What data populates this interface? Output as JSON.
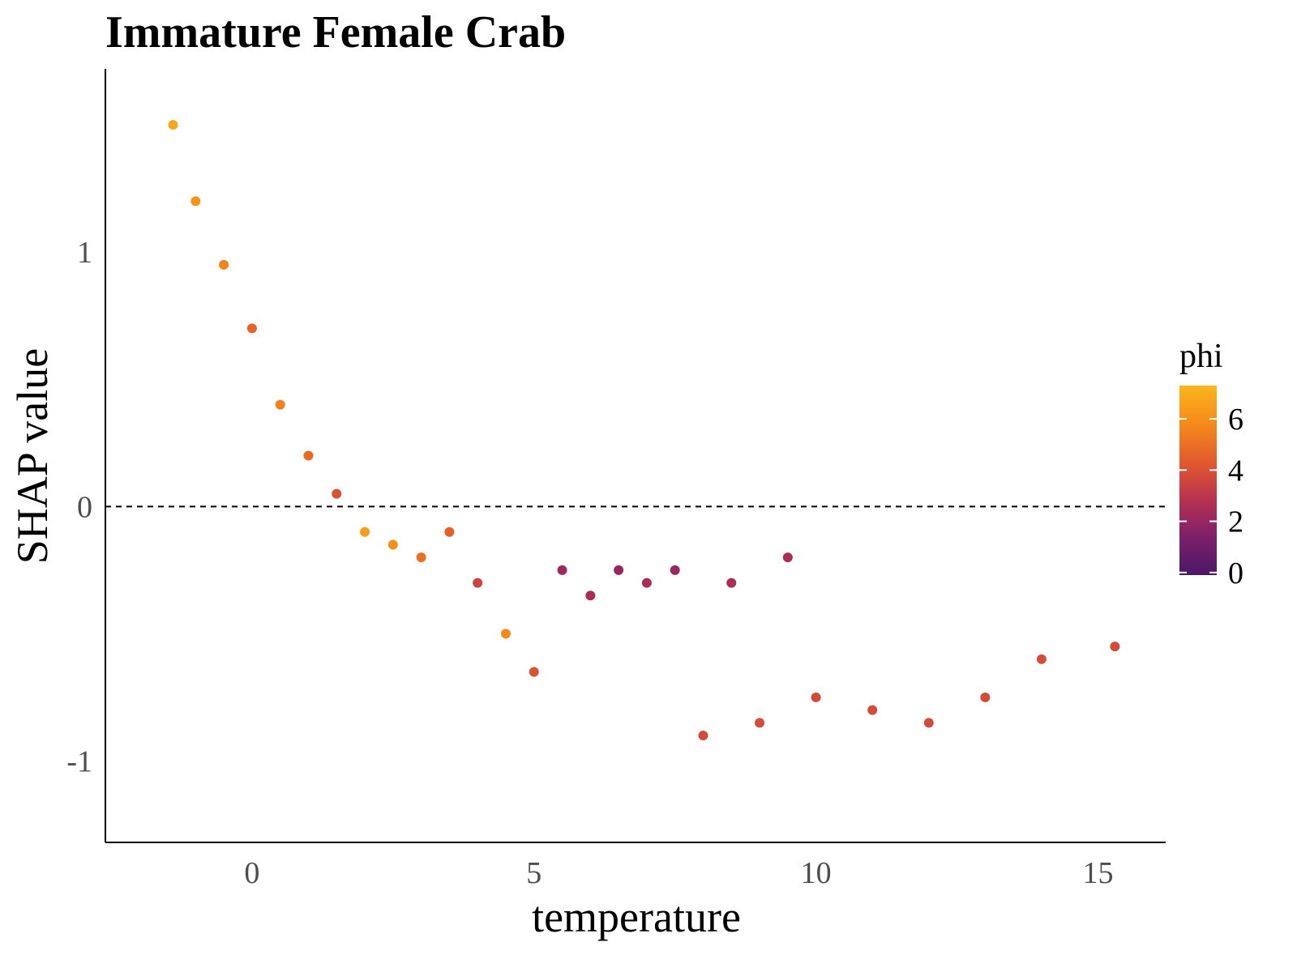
{
  "chart_data": {
    "type": "scatter",
    "title": "Immature Female Crab",
    "xlabel": "temperature",
    "ylabel": "SHAP value",
    "xlim": [
      -2.6,
      16.2
    ],
    "ylim": [
      -1.32,
      1.72
    ],
    "xticks": [
      0,
      5,
      10,
      15
    ],
    "xtick_labels": [
      "0",
      "5",
      "10",
      "15"
    ],
    "yticks": [
      -1,
      0,
      1
    ],
    "ytick_labels": [
      "-1",
      "0",
      "1"
    ],
    "reference_line": {
      "y": 0,
      "style": "dashed"
    },
    "grid": false,
    "legend": {
      "title": "phi",
      "position": "right",
      "range": [
        -0.1,
        7.3
      ],
      "ticks": [
        0,
        2,
        4,
        6
      ],
      "tick_labels": [
        "0",
        "2",
        "4",
        "6"
      ],
      "colormap": "inferno",
      "colors": [
        "#4b1866",
        "#7d1f6a",
        "#b8324f",
        "#e35b2c",
        "#f58a1a",
        "#fcb51e"
      ]
    },
    "colors": {
      "axis": "#000000",
      "tick_text": "#4d4d4d",
      "reference_line": "#000000"
    },
    "sample_points": [
      {
        "x": -1.4,
        "y": 1.5,
        "phi": 6.8
      },
      {
        "x": -1.0,
        "y": 1.2,
        "phi": 6.2
      },
      {
        "x": -0.5,
        "y": 0.95,
        "phi": 5.6
      },
      {
        "x": 0.0,
        "y": 0.7,
        "phi": 4.6
      },
      {
        "x": 0.5,
        "y": 0.4,
        "phi": 5.5
      },
      {
        "x": 1.0,
        "y": 0.2,
        "phi": 4.8
      },
      {
        "x": 1.5,
        "y": 0.05,
        "phi": 4.0
      },
      {
        "x": 2.0,
        "y": -0.1,
        "phi": 6.5
      },
      {
        "x": 2.5,
        "y": -0.15,
        "phi": 6.0
      },
      {
        "x": 3.0,
        "y": -0.2,
        "phi": 5.0
      },
      {
        "x": 3.5,
        "y": -0.1,
        "phi": 4.5
      },
      {
        "x": 4.0,
        "y": -0.3,
        "phi": 3.5
      },
      {
        "x": 4.5,
        "y": -0.5,
        "phi": 5.8
      },
      {
        "x": 5.0,
        "y": -0.65,
        "phi": 4.0
      },
      {
        "x": 5.5,
        "y": -0.25,
        "phi": 2.2
      },
      {
        "x": 6.0,
        "y": -0.35,
        "phi": 2.5
      },
      {
        "x": 6.5,
        "y": -0.25,
        "phi": 2.0
      },
      {
        "x": 7.0,
        "y": -0.3,
        "phi": 2.5
      },
      {
        "x": 7.5,
        "y": -0.25,
        "phi": 2.0
      },
      {
        "x": 8.0,
        "y": -0.9,
        "phi": 3.8
      },
      {
        "x": 8.5,
        "y": -0.3,
        "phi": 2.5
      },
      {
        "x": 9.0,
        "y": -0.85,
        "phi": 3.8
      },
      {
        "x": 9.5,
        "y": -0.2,
        "phi": 2.5
      },
      {
        "x": 10.0,
        "y": -0.75,
        "phi": 3.8
      },
      {
        "x": 11.0,
        "y": -0.8,
        "phi": 3.8
      },
      {
        "x": 12.0,
        "y": -0.85,
        "phi": 3.8
      },
      {
        "x": 13.0,
        "y": -0.75,
        "phi": 3.8
      },
      {
        "x": 14.0,
        "y": -0.6,
        "phi": 3.8
      },
      {
        "x": 15.3,
        "y": -0.55,
        "phi": 3.8
      }
    ]
  }
}
